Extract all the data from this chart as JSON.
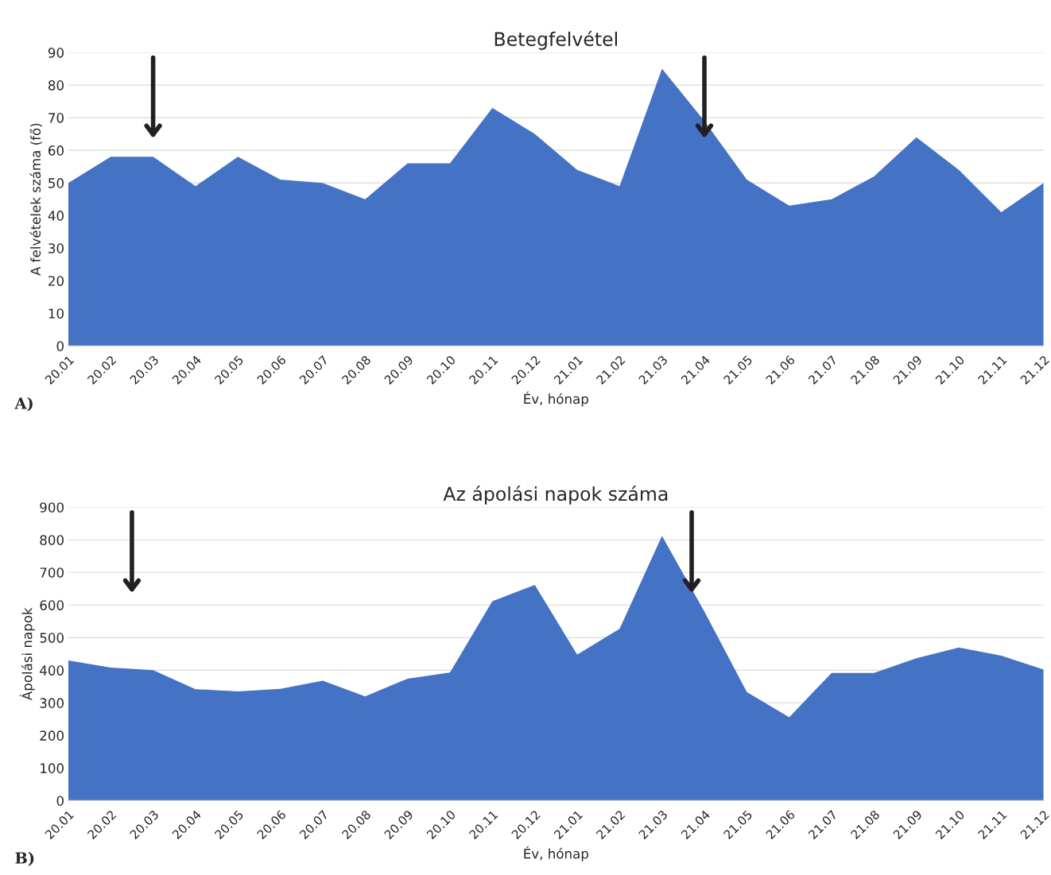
{
  "chart_data": [
    {
      "type": "area",
      "title": "Betegfelvétel",
      "xlabel": "Év, hónap",
      "ylabel": "A felvételek száma (fő)",
      "categories": [
        "20.01",
        "20.02",
        "20.03",
        "20.04",
        "20.05",
        "20.06",
        "20.07",
        "20.08",
        "20.09",
        "20.10",
        "20.11",
        "20.12",
        "21.01",
        "21.02",
        "21.03",
        "21.04",
        "21.05",
        "21.06",
        "21.07",
        "21.08",
        "21.09",
        "21.10",
        "21.11",
        "21.12"
      ],
      "series": [
        {
          "color": "#4472c4",
          "values": [
            50,
            58,
            58,
            49,
            58,
            51,
            50,
            45,
            56,
            56,
            73,
            65,
            54,
            49,
            85,
            69,
            51,
            43,
            45,
            52,
            64,
            54,
            41,
            50
          ]
        }
      ],
      "ylim": [
        0,
        90
      ],
      "yticks": [
        0,
        10,
        20,
        30,
        40,
        50,
        60,
        70,
        80,
        90
      ],
      "grid": "y",
      "legend": false,
      "annotations": [
        "A)"
      ]
    },
    {
      "type": "area",
      "title": "Az ápolási napok száma",
      "xlabel": "Év, hónap",
      "ylabel": "Ápolási napok",
      "categories": [
        "20.01",
        "20.02",
        "20.03",
        "20.04",
        "20.05",
        "20.06",
        "20.07",
        "20.08",
        "20.09",
        "20.10",
        "20.11",
        "20.12",
        "21.01",
        "21.02",
        "21.03",
        "21.04",
        "21.05",
        "21.06",
        "21.07",
        "21.08",
        "21.09",
        "21.10",
        "21.11",
        "21.12"
      ],
      "series": [
        {
          "color": "#4472c4",
          "values": [
            430,
            408,
            400,
            342,
            335,
            343,
            368,
            320,
            374,
            393,
            612,
            662,
            448,
            527,
            812,
            580,
            333,
            256,
            392,
            392,
            437,
            470,
            445,
            402
          ]
        }
      ],
      "ylim": [
        0,
        900
      ],
      "yticks": [
        0,
        100,
        200,
        300,
        400,
        500,
        600,
        700,
        800,
        900
      ],
      "grid": "y",
      "legend": false,
      "annotations": [
        "B)"
      ]
    }
  ]
}
